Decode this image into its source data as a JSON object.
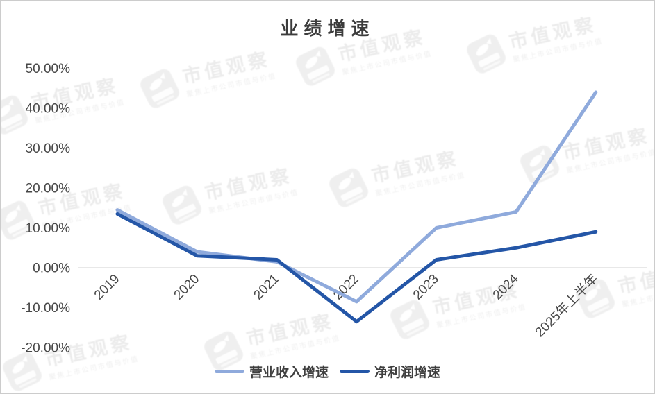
{
  "chart_data": {
    "type": "line",
    "title": "业绩增速",
    "categories": [
      "2019",
      "2020",
      "2021",
      "2022",
      "2023",
      "2024",
      "2025年上半年"
    ],
    "series": [
      {
        "name": "营业收入增速",
        "color": "#8FAADC",
        "values": [
          14.5,
          4.0,
          1.5,
          -8.5,
          10.0,
          14.0,
          44.0
        ]
      },
      {
        "name": "净利润增速",
        "color": "#2456A7",
        "values": [
          13.5,
          3.0,
          2.0,
          -13.5,
          2.0,
          5.0,
          9.0
        ]
      }
    ],
    "ylim": [
      -20,
      50
    ],
    "y_ticks": [
      "50.00%",
      "40.00%",
      "30.00%",
      "20.00%",
      "10.00%",
      "0.00%",
      "-10.00%",
      "-20.00%"
    ],
    "y_tick_values": [
      50,
      40,
      30,
      20,
      10,
      0,
      -10,
      -20
    ],
    "grid": "zero-line-only",
    "gridline_color": "#D9D9D9",
    "tick_label_color": "#474747",
    "legend_position": "bottom"
  },
  "watermark": {
    "brand": "市值观察",
    "slogan": "聚焦上市公司市值与价值"
  }
}
